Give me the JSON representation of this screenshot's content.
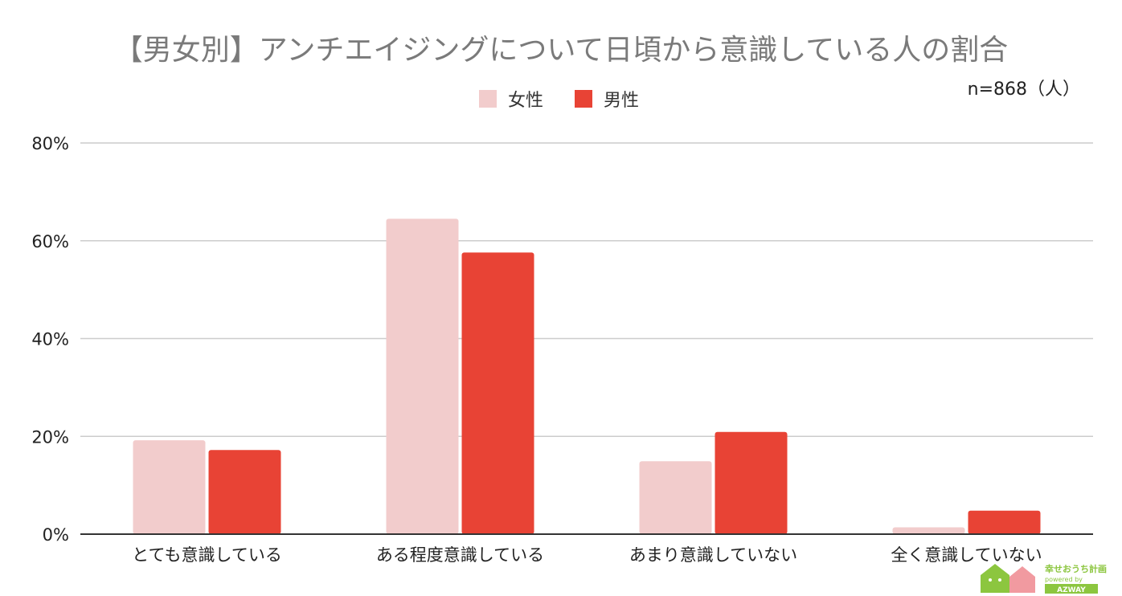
{
  "chart_data": {
    "type": "bar",
    "title": "【男女別】アンチエイジングについて日頃から意識している人の割合",
    "note": "n=868（人）",
    "categories": [
      "とても意識している",
      "ある程度意識している",
      "あまり意識していない",
      "全く意識していない"
    ],
    "series": [
      {
        "name": "女性",
        "color": "#f2cccc",
        "values": [
          19.2,
          64.5,
          14.9,
          1.4
        ]
      },
      {
        "name": "男性",
        "color": "#e84335",
        "values": [
          17.2,
          57.6,
          20.9,
          4.8
        ]
      }
    ],
    "ylim": [
      0,
      80
    ],
    "yticks": [
      "0%",
      "20%",
      "40%",
      "60%",
      "80%"
    ],
    "ytick_values": [
      0,
      20,
      40,
      60,
      80
    ],
    "grid": true,
    "legend_position": "top-center",
    "xlabel": "",
    "ylabel": ""
  },
  "logo": {
    "name": "幸せおうち計画",
    "sub": "powered by",
    "brand": "AZWAY"
  }
}
